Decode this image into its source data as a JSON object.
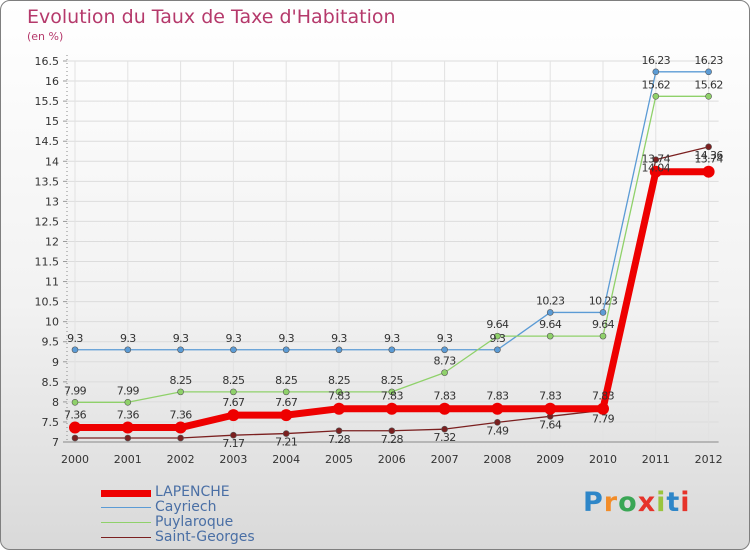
{
  "title": "Evolution du Taux de Taxe d'Habitation",
  "subtitle": "(en %)",
  "brand": {
    "text": "Proxiti",
    "colors": [
      "#2e86c8",
      "#f28c28",
      "#3aa655",
      "#e6332a",
      "#9ac43c",
      "#2e86c8",
      "#e6332a"
    ]
  },
  "chart_data": {
    "type": "line",
    "categories": [
      "2000",
      "2001",
      "2002",
      "2003",
      "2004",
      "2005",
      "2006",
      "2007",
      "2008",
      "2009",
      "2010",
      "2011",
      "2012"
    ],
    "ylim": [
      7,
      16.5
    ],
    "yticks": [
      "7",
      "7.5",
      "8",
      "8.5",
      "9",
      "9.5",
      "10",
      "10.5",
      "11",
      "11.5",
      "12",
      "12.5",
      "13",
      "13.5",
      "14",
      "14.5",
      "15",
      "15.5",
      "16",
      "16.5"
    ],
    "series": [
      {
        "name": "Cayriech",
        "color": "#5b9bd5",
        "values": [
          9.3,
          9.3,
          9.3,
          9.3,
          9.3,
          9.3,
          9.3,
          9.3,
          9.3,
          10.23,
          10.23,
          16.23,
          16.23
        ],
        "labels": [
          "9.3",
          "9.3",
          "9.3",
          "9.3",
          "9.3",
          "9.3",
          "9.3",
          "9.3",
          "9.3",
          "10.23",
          "10.23",
          "16.23",
          "16.23"
        ]
      },
      {
        "name": "Puylaroque",
        "color": "#8fd16a",
        "values": [
          7.99,
          7.99,
          8.25,
          8.25,
          8.25,
          8.25,
          8.25,
          8.73,
          9.64,
          9.64,
          9.64,
          15.62,
          15.62
        ],
        "labels": [
          "7.99",
          "7.99",
          "8.25",
          "8.25",
          "8.25",
          "8.25",
          "8.25",
          "8.73",
          "9.64",
          "9.64",
          "9.64",
          "15.62",
          "15.62"
        ]
      },
      {
        "name": "Saint-Georges",
        "color": "#7b2020",
        "values": [
          7.1,
          7.1,
          7.1,
          7.17,
          7.21,
          7.28,
          7.28,
          7.32,
          7.49,
          7.64,
          7.79,
          14.04,
          14.36
        ],
        "labels": [
          "",
          "",
          "",
          "7.17",
          "7.21",
          "7.28",
          "7.28",
          "7.32",
          "7.49",
          "7.64",
          "7.79",
          "14.04",
          "14.36"
        ]
      },
      {
        "name": "LAPENCHE",
        "color": "#ee0000",
        "values": [
          7.36,
          7.36,
          7.36,
          7.67,
          7.67,
          7.83,
          7.83,
          7.83,
          7.83,
          7.83,
          7.83,
          13.74,
          13.74
        ],
        "labels": [
          "7.36",
          "7.36",
          "7.36",
          "7.67",
          "7.67",
          "7.83",
          "7.83",
          "7.83",
          "7.83",
          "7.83",
          "7.83",
          "13.74",
          "13.74"
        ]
      }
    ],
    "legend": [
      "LAPENCHE",
      "Cayriech",
      "Puylaroque",
      "Saint-Georges"
    ]
  }
}
